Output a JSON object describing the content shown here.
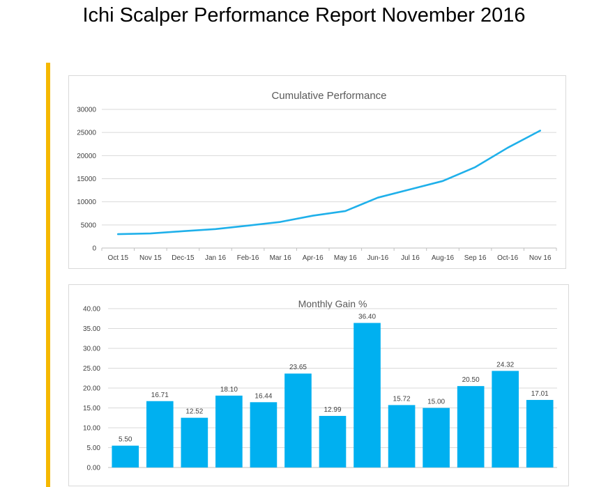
{
  "report": {
    "title": "Ichi Scalper Performance Report November 2016",
    "accent_color": "#f5b800"
  },
  "chart_data": [
    {
      "type": "line",
      "title": "Cumulative Performance",
      "categories": [
        "Oct 15",
        "Nov 15",
        "Dec-15",
        "Jan 16",
        "Feb-16",
        "Mar 16",
        "Apr-16",
        "May 16",
        "Jun-16",
        "Jul 16",
        "Aug-16",
        "Sep 16",
        "Oct-16",
        "Nov 16"
      ],
      "values": [
        3000,
        3150,
        3650,
        4100,
        4850,
        5650,
        7000,
        8000,
        10900,
        12700,
        14500,
        17500,
        21700,
        25400
      ],
      "ylim": [
        0,
        30000
      ],
      "yticks": [
        "0",
        "5000",
        "10000",
        "15000",
        "20000",
        "25000",
        "30000"
      ],
      "xlabel": "",
      "ylabel": "",
      "grid": true,
      "color": "#1fb0ea"
    },
    {
      "type": "bar",
      "title": "Monthly Gain %",
      "values": [
        5.5,
        16.71,
        12.52,
        18.1,
        16.44,
        23.65,
        12.99,
        36.4,
        15.72,
        15.0,
        20.5,
        24.32,
        17.01
      ],
      "labels": [
        "5.50",
        "16.71",
        "12.52",
        "18.10",
        "16.44",
        "23.65",
        "12.99",
        "36.40",
        "15.72",
        "15.00",
        "20.50",
        "24.32",
        "17.01"
      ],
      "ylim": [
        0,
        40
      ],
      "yticks": [
        "0.00",
        "5.00",
        "10.00",
        "15.00",
        "20.00",
        "25.00",
        "30.00",
        "35.00",
        "40.00"
      ],
      "xlabel": "",
      "ylabel": "",
      "grid": true,
      "color": "#00b0f0"
    }
  ]
}
